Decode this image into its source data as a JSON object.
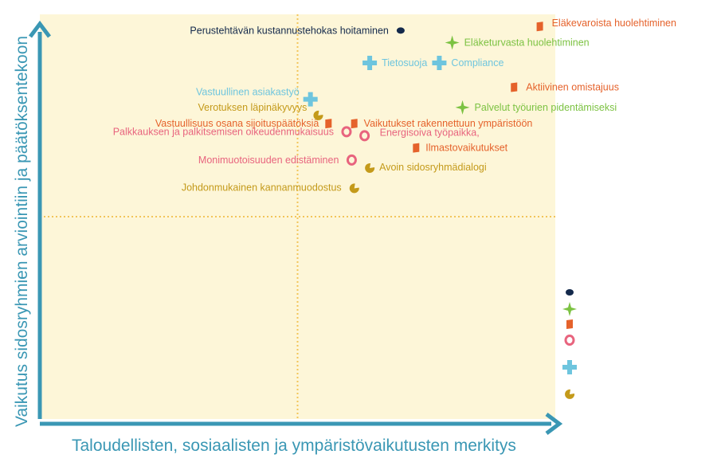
{
  "colors": {
    "background": "#fdf6d8",
    "axis": "#3a97b4",
    "grid": "#f2c55a",
    "axis_title": "#3a97b4"
  },
  "chart_data": {
    "type": "scatter",
    "title": "",
    "xlabel": "Taloudellisten, sosiaalisten ja ympäristövaikutusten merkitys",
    "ylabel": "Vaikutus sidosryhmien arviointiin ja päätöksentekoon",
    "xlim": [
      0,
      100
    ],
    "ylim": [
      0,
      100
    ],
    "reference_lines": {
      "x": 50,
      "y": 50
    },
    "grid": false,
    "legend_position": "right",
    "series": [
      {
        "marker": "dot",
        "color": "#13294b",
        "points": [
          {
            "label": "Perustehtävän kustannustehokas hoitaminen",
            "x": 70,
            "y": 96
          }
        ]
      },
      {
        "marker": "star",
        "color": "#7cc242",
        "points": [
          {
            "label": "Eläketurvasta huolehtiminen",
            "x": 80,
            "y": 93
          },
          {
            "label": "Palvelut työurien pidentämiseksi",
            "x": 82,
            "y": 77
          }
        ]
      },
      {
        "marker": "flag",
        "color": "#e5622b",
        "points": [
          {
            "label": "Eläkevaroista huolehtiminen",
            "x": 97,
            "y": 97
          },
          {
            "label": "Aktiivinen omistajuus",
            "x": 92,
            "y": 82
          },
          {
            "label": "Vaikutukset rakennettuun ympäristöön",
            "x": 61,
            "y": 73
          },
          {
            "label": "Ilmastovaikutukset",
            "x": 73,
            "y": 67
          },
          {
            "label": "Vastuullisuus osana sijoituspäätöksiä",
            "x": 56,
            "y": 73
          }
        ]
      },
      {
        "marker": "ring",
        "color": "#e8647e",
        "points": [
          {
            "label": "Palkkauksen ja palkitsemisen oikeudenmukaisuus",
            "x": 59.5,
            "y": 71
          },
          {
            "label": "Energisoiva työpaikka,",
            "x": 63,
            "y": 70
          },
          {
            "label": "Monimuotoisuuden edistäminen",
            "x": 60.5,
            "y": 64
          }
        ]
      },
      {
        "marker": "cross",
        "color": "#6ec5de",
        "points": [
          {
            "label": "Tietosuoja",
            "x": 64,
            "y": 88
          },
          {
            "label": "Compliance",
            "x": 77.5,
            "y": 88
          },
          {
            "label": "Vastuullinen asiakastyö",
            "x": 52.5,
            "y": 79
          }
        ]
      },
      {
        "marker": "pacman",
        "color": "#c49a1a",
        "points": [
          {
            "label": "Verotuksen läpinäkyvyys",
            "x": 54,
            "y": 75
          },
          {
            "label": "Avoin sidosryhmädialogi",
            "x": 64,
            "y": 62
          },
          {
            "label": "Johdonmukainen kannanmuodostus",
            "x": 61,
            "y": 57
          }
        ]
      }
    ]
  }
}
